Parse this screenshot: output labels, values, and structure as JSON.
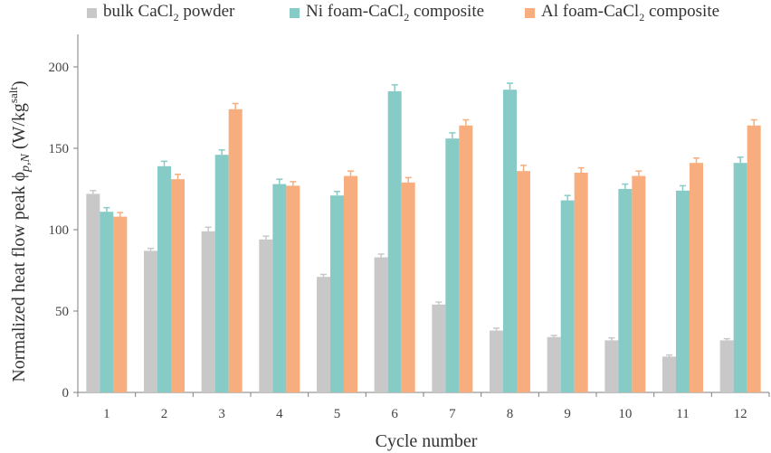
{
  "chart_data": {
    "type": "bar",
    "title": "",
    "xlabel": "Cycle number",
    "ylabel": "Normalized heat flow peak ϕ",
    "ylabel_subscript": "p,N",
    "ylabel_unit_open": " (W/kg",
    "ylabel_unit_sup": "salt",
    "ylabel_unit_close": ")",
    "ylim": [
      0,
      220
    ],
    "yticks": [
      0,
      50,
      100,
      150,
      200
    ],
    "categories": [
      "1",
      "2",
      "3",
      "4",
      "5",
      "6",
      "7",
      "8",
      "9",
      "10",
      "11",
      "12"
    ],
    "legend_position": "top",
    "grid": false,
    "series": [
      {
        "name_prefix": "bulk CaCl",
        "name_sub": "2",
        "name_suffix": " powder",
        "color": "#c8c8c8",
        "values": [
          122,
          87,
          99,
          94,
          71,
          83,
          54,
          38,
          34,
          32,
          22,
          32
        ],
        "errors": [
          2,
          1.5,
          2.5,
          2,
          1.5,
          2,
          1.5,
          1.5,
          1,
          1.5,
          1,
          1
        ]
      },
      {
        "name_prefix": "Ni foam-CaCl",
        "name_sub": "2",
        "name_suffix": " composite",
        "color": "#86cbc6",
        "values": [
          111,
          139,
          146,
          128,
          121,
          185,
          156,
          186,
          118,
          125,
          124,
          141
        ],
        "errors": [
          2.5,
          3,
          3,
          3,
          2.5,
          4,
          3.5,
          4,
          3,
          3,
          3,
          3.5
        ]
      },
      {
        "name_prefix": "Al foam-CaCl",
        "name_sub": "2",
        "name_suffix": " composite",
        "color": "#f7ad7d",
        "values": [
          108,
          131,
          174,
          127,
          133,
          129,
          164,
          136,
          135,
          133,
          141,
          164
        ],
        "errors": [
          2.5,
          3,
          3.5,
          2.5,
          3,
          3,
          3.5,
          3.5,
          3,
          3,
          3,
          3.5
        ]
      }
    ]
  }
}
